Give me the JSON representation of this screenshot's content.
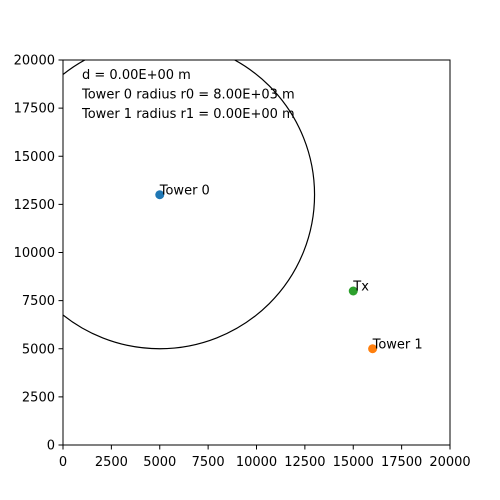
{
  "chart_data": {
    "type": "scatter",
    "title": "",
    "xlabel": "",
    "ylabel": "",
    "xlim": [
      0,
      20000
    ],
    "ylim": [
      0,
      20000
    ],
    "xticks": [
      "0",
      "2500",
      "5000",
      "7500",
      "10000",
      "12500",
      "15000",
      "17500",
      "20000"
    ],
    "yticks": [
      "0",
      "2500",
      "5000",
      "7500",
      "10000",
      "12500",
      "15000",
      "17500",
      "20000"
    ],
    "grid": false,
    "points": [
      {
        "label": "Tower 0",
        "x": 5000,
        "y": 13000,
        "color": "#1f77b4"
      },
      {
        "label": "Tower 1",
        "x": 16000,
        "y": 5000,
        "color": "#ff7f0e"
      },
      {
        "label": "Tx",
        "x": 15000,
        "y": 8000,
        "color": "#2ca02c"
      }
    ],
    "circles": [
      {
        "center_x": 5000,
        "center_y": 13000,
        "radius": 8000,
        "color": "#000000"
      }
    ],
    "annotations": [
      "d = 0.00E+00 m",
      "Tower 0 radius r0 = 8.00E+03 m",
      "Tower 1 radius r1 = 0.00E+00 m"
    ]
  }
}
